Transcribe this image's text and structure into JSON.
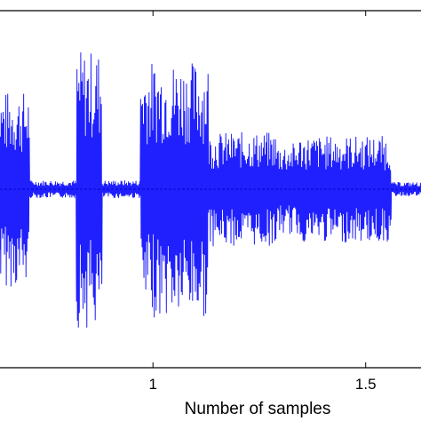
{
  "chart_data": {
    "type": "line",
    "title": "",
    "xlabel": "Number of samples",
    "ylabel": "",
    "x_tick_labels": [
      {
        "value": 1,
        "label": "1"
      },
      {
        "value": 1.5,
        "label": "1.5"
      }
    ],
    "xlim": [
      0.63,
      1.63
    ],
    "ylim": [
      -1,
      1
    ],
    "grid": false,
    "series": [
      {
        "color": "#2020ff",
        "description_segments": [
          {
            "x_start": 0.63,
            "x_end": 0.71,
            "peak_amplitude": 0.55
          },
          {
            "x_start": 0.71,
            "x_end": 0.82,
            "peak_amplitude": 0.05
          },
          {
            "x_start": 0.82,
            "x_end": 0.88,
            "peak_amplitude": 0.78
          },
          {
            "x_start": 0.88,
            "x_end": 0.97,
            "peak_amplitude": 0.05
          },
          {
            "x_start": 0.97,
            "x_end": 1.13,
            "peak_amplitude": 0.72
          },
          {
            "x_start": 1.13,
            "x_end": 1.29,
            "peak_amplitude": 0.32
          },
          {
            "x_start": 1.29,
            "x_end": 1.34,
            "peak_amplitude": 0.26
          },
          {
            "x_start": 1.34,
            "x_end": 1.56,
            "peak_amplitude": 0.3
          },
          {
            "x_start": 1.56,
            "x_end": 1.63,
            "peak_amplitude": 0.04
          }
        ]
      }
    ]
  }
}
